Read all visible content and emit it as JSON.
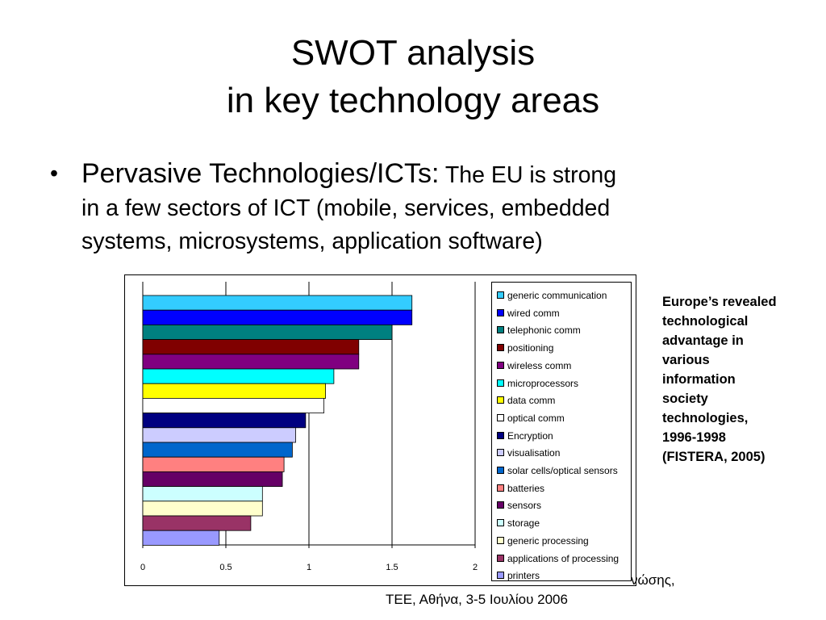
{
  "slide": {
    "title_line1": "SWOT analysis",
    "title_line2": "in key technology areas"
  },
  "bullet": {
    "symbol": "•",
    "lead": "Pervasive Technologies/ICTs:",
    "line1_rest": " The EU is strong",
    "line2": "in a few sectors of ICT (mobile, services, embedded",
    "line3": "systems, microsystems, application software)"
  },
  "caption": {
    "lines": [
      "Europe’s revealed",
      "technological",
      "advantage in",
      "various",
      "information",
      "society",
      "technologies,",
      "1996-1998",
      "(FISTERA, 2005)"
    ]
  },
  "footer": {
    "line1_fragment": "νώσης,",
    "line2": "ΤΕΕ, Αθήνα, 3-5 Ιουλίου 2006"
  },
  "chart_data": {
    "type": "bar",
    "orientation": "horizontal",
    "xlim": [
      0,
      2
    ],
    "x_ticks": [
      "0",
      "0.5",
      "1",
      "1.5",
      "2"
    ],
    "grid": "vertical",
    "legend_position": "right",
    "series": [
      {
        "name": "generic communication",
        "value": 1.62,
        "color": "#33ccff"
      },
      {
        "name": "wired comm",
        "value": 1.62,
        "color": "#0000ff"
      },
      {
        "name": "telephonic comm",
        "value": 1.5,
        "color": "#008080"
      },
      {
        "name": "positioning",
        "value": 1.3,
        "color": "#800000"
      },
      {
        "name": "wireless comm",
        "value": 1.3,
        "color": "#800080"
      },
      {
        "name": "microprocessors",
        "value": 1.15,
        "color": "#00ffff"
      },
      {
        "name": "data comm",
        "value": 1.1,
        "color": "#ffff00"
      },
      {
        "name": "optical comm",
        "value": 1.09,
        "color": "#ffffff"
      },
      {
        "name": "Encryption",
        "value": 0.98,
        "color": "#000080"
      },
      {
        "name": "visualisation",
        "value": 0.92,
        "color": "#ccccff"
      },
      {
        "name": "solar cells/optical sensors",
        "value": 0.9,
        "color": "#0066cc"
      },
      {
        "name": "batteries",
        "value": 0.85,
        "color": "#ff8080"
      },
      {
        "name": "sensors",
        "value": 0.84,
        "color": "#660066"
      },
      {
        "name": "storage",
        "value": 0.72,
        "color": "#ccffff"
      },
      {
        "name": "generic processing",
        "value": 0.72,
        "color": "#ffffcc"
      },
      {
        "name": "applications of processing",
        "value": 0.65,
        "color": "#993366"
      },
      {
        "name": "printers",
        "value": 0.46,
        "color": "#9999ff"
      }
    ]
  }
}
